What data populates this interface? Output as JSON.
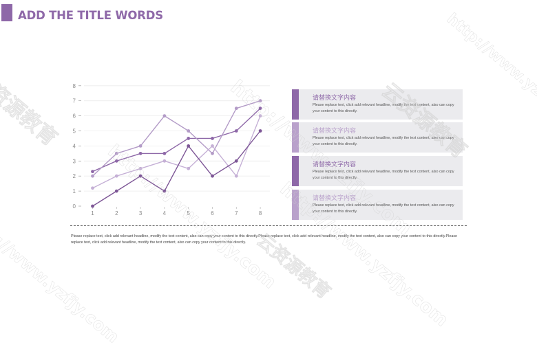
{
  "header": {
    "title": "ADD THE TITLE WORDS"
  },
  "chart_data": {
    "type": "line",
    "categories": [
      "1",
      "2",
      "3",
      "4",
      "5",
      "6",
      "7",
      "8"
    ],
    "y_ticks": [
      "0",
      "1",
      "2",
      "3",
      "4",
      "5",
      "6",
      "7",
      "8"
    ],
    "ylim": [
      0,
      8
    ],
    "grid": true,
    "series": [
      {
        "values": [
          2.3,
          3.0,
          3.5,
          3.5,
          4.5,
          4.5,
          5.0,
          6.5
        ],
        "color": "#8e68a8"
      },
      {
        "values": [
          2.0,
          3.5,
          4.0,
          6.0,
          5.0,
          3.5,
          6.5,
          7.0
        ],
        "color": "#b39bc7"
      },
      {
        "values": [
          1.2,
          2.0,
          2.5,
          3.0,
          2.5,
          4.0,
          2.0,
          6.0
        ],
        "color": "#c5b0d6"
      },
      {
        "values": [
          0.0,
          1.0,
          2.0,
          1.0,
          4.0,
          2.0,
          3.0,
          5.0
        ],
        "color": "#7d5696"
      }
    ]
  },
  "cards": [
    {
      "heading": "请替换文字内容",
      "text": "Please replace text, click add relevant headline, modify the text content, also can copy your content to this directly.",
      "bar_color": "#8e68a8",
      "heading_color": "#8e68a8"
    },
    {
      "heading": "请替换文字内容",
      "text": "Please replace text, click add relevant headline, modify the text content, also can copy your content to this directly.",
      "bar_color": "#b9a1cb",
      "heading_color": "#b9a1cb"
    },
    {
      "heading": "请替换文字内容",
      "text": "Please replace text, click add relevant headline, modify the text content, also can copy your content to this directly.",
      "bar_color": "#8e68a8",
      "heading_color": "#8e68a8"
    },
    {
      "heading": "请替换文字内容",
      "text": "Please replace text, click add relevant headline, modify the text content, also can copy your content to this directly.",
      "bar_color": "#b9a1cb",
      "heading_color": "#b9a1cb"
    }
  ],
  "footer": {
    "text": "Please replace text, click add relevant headline, modify the text content, also can copy your content to this directly.Please replace text, click add relevant headline, modify the text content, also can copy your content to this directly.Please replace text, click add relevant headline, modify the text content, also can copy your content to this directly."
  },
  "watermark": {
    "text": "http://www.yzfjy.com",
    "brand": "云资源教育"
  }
}
